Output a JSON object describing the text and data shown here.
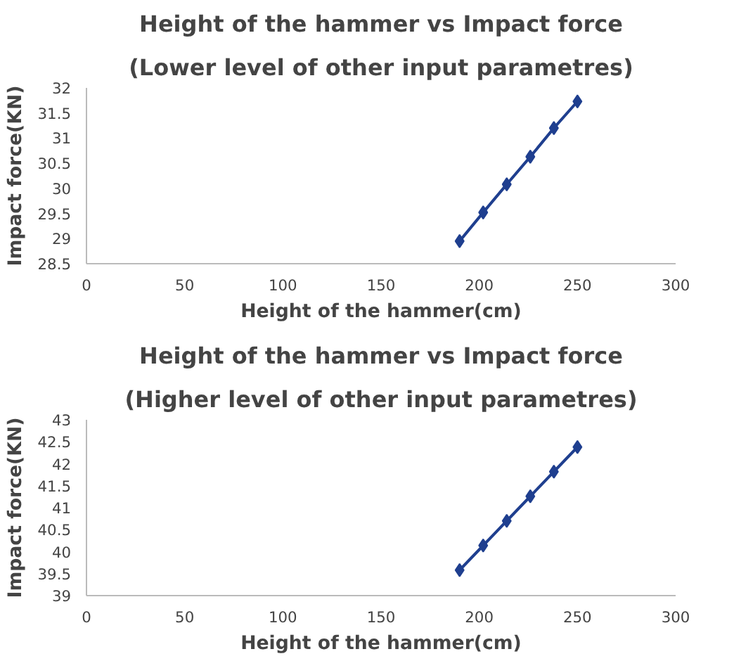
{
  "chart_data": [
    {
      "type": "line",
      "title": "Height of the hammer vs Impact force",
      "subtitle": "(Lower level of other input parametres)",
      "xlabel": "Height of the hammer(cm)",
      "ylabel": "Impact force(KN)",
      "x": [
        190,
        202,
        214,
        226,
        238,
        250
      ],
      "series": [
        {
          "color": "#1f3f8f",
          "values": [
            28.95,
            29.52,
            30.08,
            30.63,
            31.2,
            31.73
          ]
        }
      ],
      "xlim": [
        0,
        300
      ],
      "xticks": [
        0,
        50,
        100,
        150,
        200,
        250,
        300
      ],
      "ylim": [
        28.5,
        32
      ],
      "yticks": [
        28.5,
        29,
        29.5,
        30,
        30.5,
        31,
        31.5,
        32
      ],
      "grid": false,
      "marker": "diamond",
      "line_style": "solid"
    },
    {
      "type": "line",
      "title": "Height of the hammer vs Impact force",
      "subtitle": "(Higher level of other input parametres)",
      "xlabel": "Height of the hammer(cm)",
      "ylabel": "Impact force(KN)",
      "x": [
        190,
        202,
        214,
        226,
        238,
        250
      ],
      "series": [
        {
          "color": "#1f3f8f",
          "values": [
            39.58,
            40.14,
            40.7,
            41.26,
            41.82,
            42.38
          ]
        }
      ],
      "xlim": [
        0,
        300
      ],
      "xticks": [
        0,
        50,
        100,
        150,
        200,
        250,
        300
      ],
      "ylim": [
        39,
        43
      ],
      "yticks": [
        39,
        39.5,
        40,
        40.5,
        41,
        41.5,
        42,
        42.5,
        43
      ],
      "grid": false,
      "marker": "diamond",
      "line_style": "solid"
    }
  ]
}
